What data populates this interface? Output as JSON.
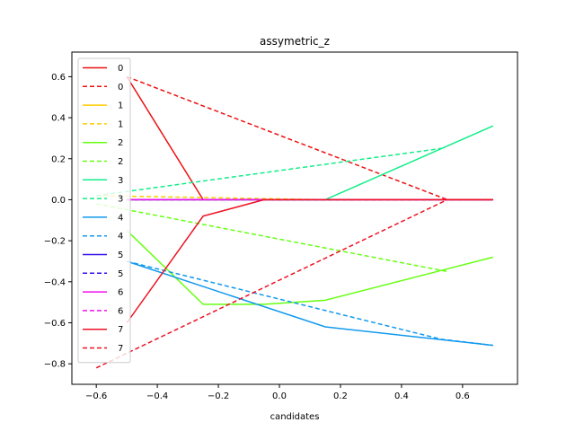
{
  "chart_data": {
    "type": "line",
    "title": "assymetric_z",
    "xlabel": "candidates",
    "ylabel": "",
    "xlim": [
      -0.68,
      0.78
    ],
    "ylim": [
      -0.9,
      0.72
    ],
    "xticks": [
      -0.6,
      -0.4,
      -0.2,
      0.0,
      0.2,
      0.4,
      0.6
    ],
    "xtick_labels": [
      "−0.6",
      "−0.4",
      "−0.2",
      "0.0",
      "0.2",
      "0.4",
      "0.6"
    ],
    "yticks": [
      -0.8,
      -0.6,
      -0.4,
      -0.2,
      0.0,
      0.2,
      0.4,
      0.6
    ],
    "ytick_labels": [
      "−0.8",
      "−0.6",
      "−0.4",
      "−0.2",
      "0.0",
      "0.2",
      "0.4",
      "0.6"
    ],
    "grid": false,
    "legend_position": "upper-left",
    "series": [
      {
        "name": "0",
        "color": "#ee1111",
        "dash": "solid",
        "points": [
          [
            -0.5,
            0.6
          ],
          [
            -0.25,
            0.0
          ],
          [
            0.7,
            0.0
          ]
        ]
      },
      {
        "name": "0",
        "color": "#ee1111",
        "dash": "dashed",
        "points": [
          [
            -0.5,
            0.6
          ],
          [
            0.55,
            0.0
          ],
          [
            0.7,
            0.0
          ]
        ]
      },
      {
        "name": "1",
        "color": "#ffcc00",
        "dash": "solid",
        "points": [
          [
            -0.5,
            0.0
          ],
          [
            0.7,
            0.0
          ]
        ]
      },
      {
        "name": "1",
        "color": "#ffcc00",
        "dash": "dashed",
        "points": [
          [
            -0.6,
            0.02
          ],
          [
            0.15,
            0.0
          ],
          [
            0.7,
            0.0
          ]
        ]
      },
      {
        "name": "2",
        "color": "#66ff11",
        "dash": "solid",
        "points": [
          [
            -0.5,
            -0.15
          ],
          [
            -0.25,
            -0.51
          ],
          [
            -0.05,
            -0.51
          ],
          [
            0.15,
            -0.49
          ],
          [
            0.7,
            -0.28
          ]
        ]
      },
      {
        "name": "2",
        "color": "#66ff11",
        "dash": "dashed",
        "points": [
          [
            -0.6,
            -0.02
          ],
          [
            0.55,
            -0.35
          ]
        ]
      },
      {
        "name": "3",
        "color": "#11ee88",
        "dash": "solid",
        "points": [
          [
            -0.5,
            0.0
          ],
          [
            0.15,
            0.0
          ],
          [
            0.7,
            0.36
          ]
        ]
      },
      {
        "name": "3",
        "color": "#11ee88",
        "dash": "dashed",
        "points": [
          [
            -0.6,
            0.02
          ],
          [
            0.53,
            0.25
          ]
        ]
      },
      {
        "name": "4",
        "color": "#1199ee",
        "dash": "solid",
        "points": [
          [
            -0.5,
            -0.3
          ],
          [
            0.15,
            -0.62
          ],
          [
            0.7,
            -0.71
          ]
        ]
      },
      {
        "name": "4",
        "color": "#1199ee",
        "dash": "dashed",
        "points": [
          [
            -0.5,
            -0.3
          ],
          [
            0.53,
            -0.68
          ],
          [
            0.7,
            -0.71
          ]
        ]
      },
      {
        "name": "5",
        "color": "#3311ee",
        "dash": "solid",
        "points": [
          [
            -0.5,
            0.0
          ],
          [
            0.7,
            0.0
          ]
        ]
      },
      {
        "name": "5",
        "color": "#3311ee",
        "dash": "dashed",
        "points": [
          [
            -0.5,
            0.0
          ],
          [
            0.7,
            0.0
          ]
        ]
      },
      {
        "name": "6",
        "color": "#ee11ee",
        "dash": "solid",
        "points": [
          [
            -0.5,
            0.0
          ],
          [
            0.7,
            0.0
          ]
        ]
      },
      {
        "name": "6",
        "color": "#ee11ee",
        "dash": "dashed",
        "points": [
          [
            -0.5,
            0.0
          ],
          [
            0.7,
            0.0
          ]
        ]
      },
      {
        "name": "7",
        "color": "#ee1122",
        "dash": "solid",
        "points": [
          [
            -0.5,
            -0.6
          ],
          [
            -0.25,
            -0.08
          ],
          [
            -0.05,
            0.0
          ],
          [
            0.7,
            0.0
          ]
        ]
      },
      {
        "name": "7",
        "color": "#ee1122",
        "dash": "dashed",
        "points": [
          [
            -0.6,
            -0.82
          ],
          [
            0.55,
            0.0
          ],
          [
            0.7,
            0.0
          ]
        ]
      }
    ]
  }
}
